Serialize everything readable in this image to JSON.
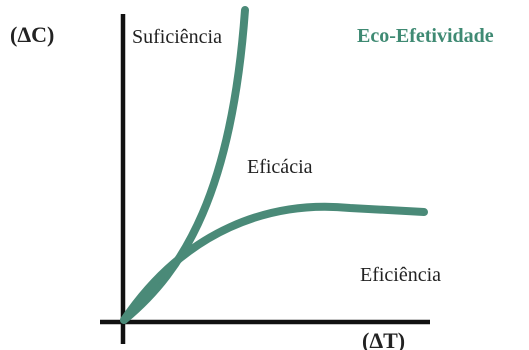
{
  "labels": {
    "y_axis": "(ΔC)",
    "x_axis": "(ΔT)",
    "sufficiency": "Suficiência",
    "efficacy": "Eficácia",
    "efficiency": "Eficiência",
    "eco_effectiveness": "Eco-Efetividade"
  },
  "colors": {
    "curve": "#4a8a78",
    "axis": "#111111",
    "accent_text": "#3f8a73"
  }
}
